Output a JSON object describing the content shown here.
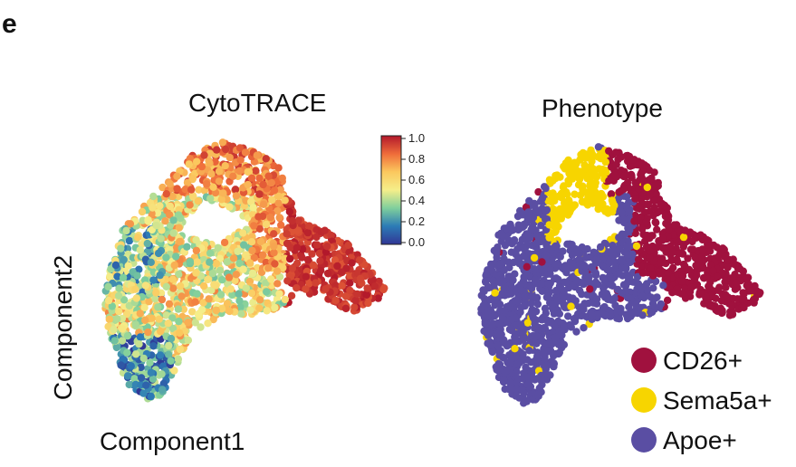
{
  "panel_letter": "e",
  "chart_data": [
    {
      "type": "scatter",
      "title": "CytoTRACE",
      "xlabel": "Component1",
      "ylabel": "Component2",
      "colorbar": {
        "min": 0.0,
        "max": 1.0,
        "ticks": [
          "1.0",
          "0.8",
          "0.6",
          "0.4",
          "0.2",
          "0.0"
        ],
        "colors": [
          "#b2182b",
          "#ef6c3a",
          "#fbc85e",
          "#f5ee8a",
          "#7fcf9c",
          "#2c7bb6",
          "#313695"
        ]
      }
    },
    {
      "type": "scatter",
      "title": "Phenotype",
      "legend_position": "bottom-right",
      "series": [
        {
          "name": "CD26+",
          "color": "#a0113e"
        },
        {
          "name": "Sema5a+",
          "color": "#f7d500"
        },
        {
          "name": "Apoe+",
          "color": "#5a4ea3"
        }
      ]
    }
  ]
}
